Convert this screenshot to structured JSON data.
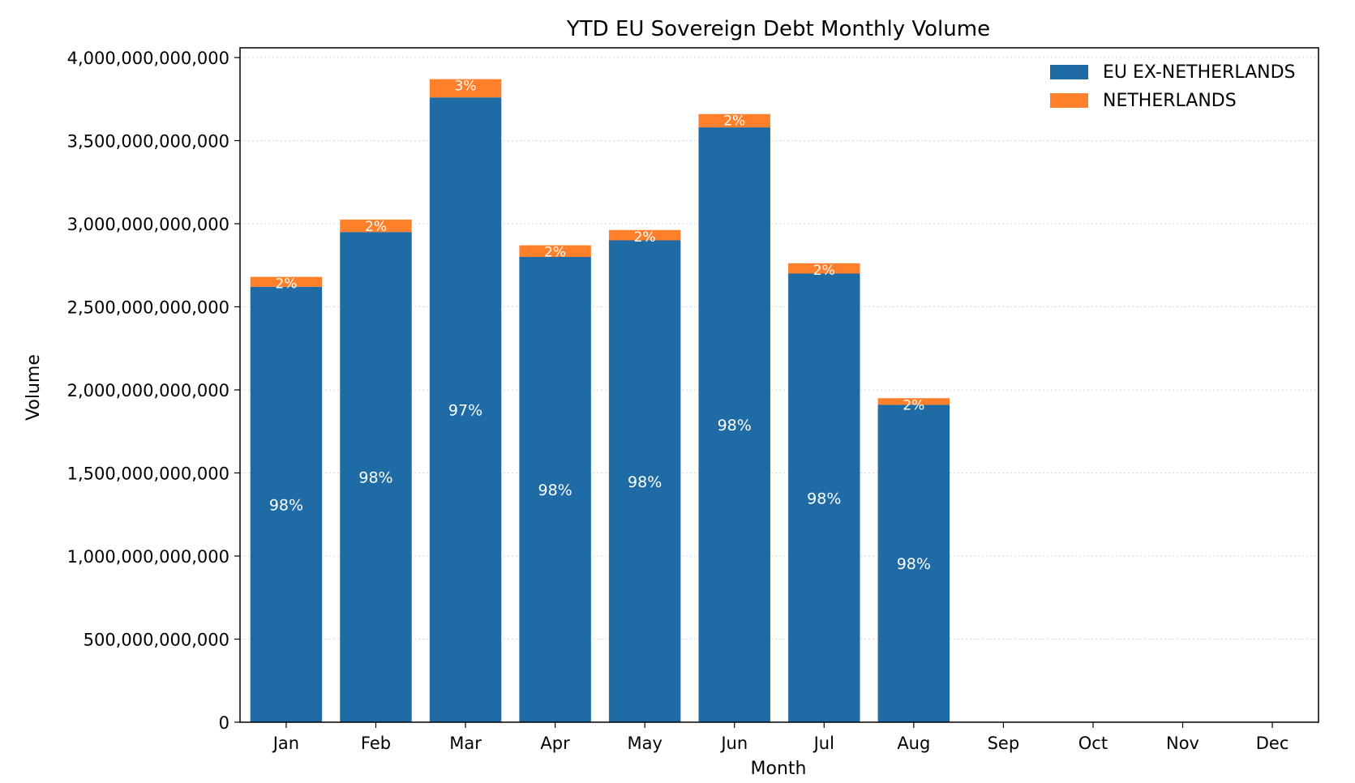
{
  "chart_data": {
    "type": "bar",
    "stacked": true,
    "title": "YTD EU Sovereign Debt Monthly Volume",
    "xlabel": "Month",
    "ylabel": "Volume",
    "categories": [
      "Jan",
      "Feb",
      "Mar",
      "Apr",
      "May",
      "Jun",
      "Jul",
      "Aug",
      "Sep",
      "Oct",
      "Nov",
      "Dec"
    ],
    "ylim": [
      0,
      4000000000000
    ],
    "yticks": [
      0,
      500000000000,
      1000000000000,
      1500000000000,
      2000000000000,
      2500000000000,
      3000000000000,
      3500000000000,
      4000000000000
    ],
    "ytick_labels": [
      "0",
      "500,000,000,000",
      "1,000,000,000,000",
      "1,500,000,000,000",
      "2,000,000,000,000",
      "2,500,000,000,000",
      "3,000,000,000,000",
      "3,500,000,000,000",
      "4,000,000,000,000"
    ],
    "grid": "y-dotted",
    "legend_position": "top-right",
    "series": [
      {
        "name": "EU EX-NETHERLANDS",
        "color": "#1f6ba5",
        "values": [
          2620000000000,
          2950000000000,
          3760000000000,
          2800000000000,
          2900000000000,
          3580000000000,
          2700000000000,
          1910000000000,
          null,
          null,
          null,
          null
        ],
        "labels": [
          "98%",
          "98%",
          "97%",
          "98%",
          "98%",
          "98%",
          "98%",
          "98%",
          null,
          null,
          null,
          null
        ]
      },
      {
        "name": "NETHERLANDS",
        "color": "#ff7f2a",
        "values": [
          60000000000,
          75000000000,
          110000000000,
          70000000000,
          62000000000,
          80000000000,
          62000000000,
          40000000000,
          null,
          null,
          null,
          null
        ],
        "labels": [
          "2%",
          "2%",
          "3%",
          "2%",
          "2%",
          "2%",
          "2%",
          "2%",
          null,
          null,
          null,
          null
        ]
      }
    ]
  }
}
